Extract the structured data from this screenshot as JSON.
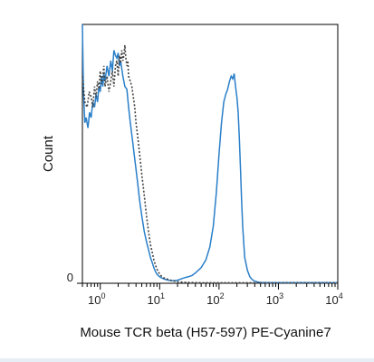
{
  "chart_data": {
    "type": "line",
    "title": "",
    "xlabel": "Mouse TCR beta (H57-597) PE-Cyanine7",
    "ylabel": "Count",
    "xscale": "log",
    "xlim": [
      0.5,
      10000
    ],
    "ylim": [
      0,
      100
    ],
    "x_ticks": [
      {
        "value": 1,
        "base": "10",
        "exp": "0"
      },
      {
        "value": 10,
        "base": "10",
        "exp": "1"
      },
      {
        "value": 100,
        "base": "10",
        "exp": "2"
      },
      {
        "value": 1000,
        "base": "10",
        "exp": "3"
      },
      {
        "value": 10000,
        "base": "10",
        "exp": "4"
      }
    ],
    "y_ticks": [
      {
        "value": 0,
        "label": "0"
      }
    ],
    "grid": false,
    "legend": "none",
    "series": [
      {
        "style": "solid",
        "color": "#2a7fc9",
        "x": [
          0.5,
          0.52,
          0.55,
          0.58,
          0.62,
          0.66,
          0.7,
          0.75,
          0.8,
          0.85,
          0.9,
          0.95,
          1.0,
          1.05,
          1.1,
          1.15,
          1.2,
          1.3,
          1.4,
          1.5,
          1.6,
          1.7,
          1.8,
          1.9,
          2.0,
          2.1,
          2.2,
          2.4,
          2.6,
          2.8,
          3.0,
          3.2,
          3.5,
          3.8,
          4.2,
          4.6,
          5.0,
          5.5,
          6.0,
          6.5,
          7.0,
          7.5,
          8.0,
          8.5,
          9.0,
          10.0,
          11.0,
          12.0,
          14.0,
          16.0,
          18.0,
          20.0,
          22.0,
          25.0,
          30.0,
          35.0,
          40.0,
          50.0,
          60.0,
          70.0,
          80.0,
          90.0,
          100.0,
          110.0,
          120.0,
          130.0,
          140.0,
          150.0,
          160.0,
          170.0,
          180.0,
          190.0,
          200.0,
          210.0,
          220.0,
          230.0,
          240.0,
          250.0,
          270.0,
          300.0,
          330.0,
          360.0,
          400.0,
          450.0,
          500.0,
          700.0,
          1000.0,
          3000.0,
          10000.0
        ],
        "y": [
          100,
          75,
          62,
          64,
          60,
          66,
          64,
          70,
          68,
          73,
          70,
          76,
          74,
          80,
          76,
          81,
          78,
          84,
          80,
          86,
          82,
          90,
          88,
          87,
          89,
          84,
          86,
          80,
          76,
          75,
          68,
          62,
          55,
          48,
          40,
          32,
          26,
          20,
          16,
          13,
          10,
          8,
          6,
          4.5,
          3.5,
          2.5,
          2,
          1.6,
          1.2,
          1,
          1,
          1.2,
          1.5,
          2,
          2.5,
          3,
          4,
          6,
          9,
          14,
          22,
          35,
          50,
          62,
          70,
          73,
          75,
          78,
          80,
          79,
          81,
          76,
          72,
          66,
          56,
          44,
          32,
          22,
          10,
          5,
          2.5,
          1.5,
          0.8,
          0.5,
          0.3,
          0.2,
          0.2,
          0.2,
          0.2
        ]
      },
      {
        "style": "dotted",
        "color": "#444444",
        "x": [
          0.5,
          0.55,
          0.6,
          0.65,
          0.7,
          0.75,
          0.8,
          0.85,
          0.9,
          0.95,
          1.0,
          1.05,
          1.1,
          1.15,
          1.2,
          1.3,
          1.4,
          1.5,
          1.6,
          1.7,
          1.8,
          1.9,
          2.0,
          2.1,
          2.2,
          2.3,
          2.4,
          2.5,
          2.6,
          2.7,
          2.8,
          2.9,
          3.0,
          3.2,
          3.4,
          3.6,
          3.8,
          4.0,
          4.3,
          4.6,
          5.0,
          5.5,
          6.0,
          6.5,
          7.0,
          7.5,
          8.0,
          8.5,
          9.0,
          9.5,
          10.0,
          11.0,
          12.0,
          14.0,
          16.0,
          18.0,
          20.0,
          25.0,
          30.0,
          50.0,
          10000.0
        ],
        "y": [
          80,
          70,
          68,
          74,
          72,
          68,
          76,
          72,
          78,
          75,
          82,
          77,
          80,
          84,
          76,
          80,
          74,
          78,
          82,
          76,
          84,
          86,
          80,
          88,
          85,
          90,
          86,
          88,
          92,
          87,
          84,
          86,
          80,
          78,
          76,
          72,
          68,
          62,
          56,
          50,
          42,
          34,
          26,
          20,
          15,
          12,
          9,
          7,
          5.5,
          4.5,
          3.5,
          2.5,
          2,
          1.5,
          1,
          0.8,
          0.6,
          0.4,
          0.3,
          0.2,
          0.2
        ]
      }
    ]
  }
}
